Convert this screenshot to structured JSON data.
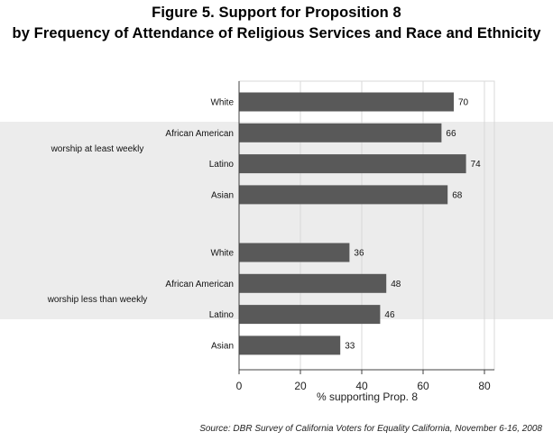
{
  "title_line1": "Figure 5.  Support for Proposition 8",
  "title_line2": "by Frequency of Attendance of Religious Services and Race and Ethnicity",
  "source": "Source: DBR Survey of California Voters for Equality California, November 6-16, 2008",
  "colors": {
    "bar": "#595959",
    "grid": "#d9d9d9",
    "axis": "#404040",
    "band": "#c8c8c8"
  },
  "chart_data": {
    "type": "bar",
    "orientation": "horizontal",
    "xlabel": "% supporting Prop. 8",
    "xlim": [
      0,
      80
    ],
    "xticks": [
      0,
      20,
      40,
      60,
      80
    ],
    "grid": true,
    "groups": [
      {
        "label": "worship at least weekly",
        "categories": [
          "White",
          "African American",
          "Latino",
          "Asian"
        ],
        "values": [
          70,
          66,
          74,
          68
        ]
      },
      {
        "label": "worship less than weekly",
        "categories": [
          "White",
          "African American",
          "Latino",
          "Asian"
        ],
        "values": [
          36,
          48,
          46,
          33
        ]
      }
    ]
  }
}
